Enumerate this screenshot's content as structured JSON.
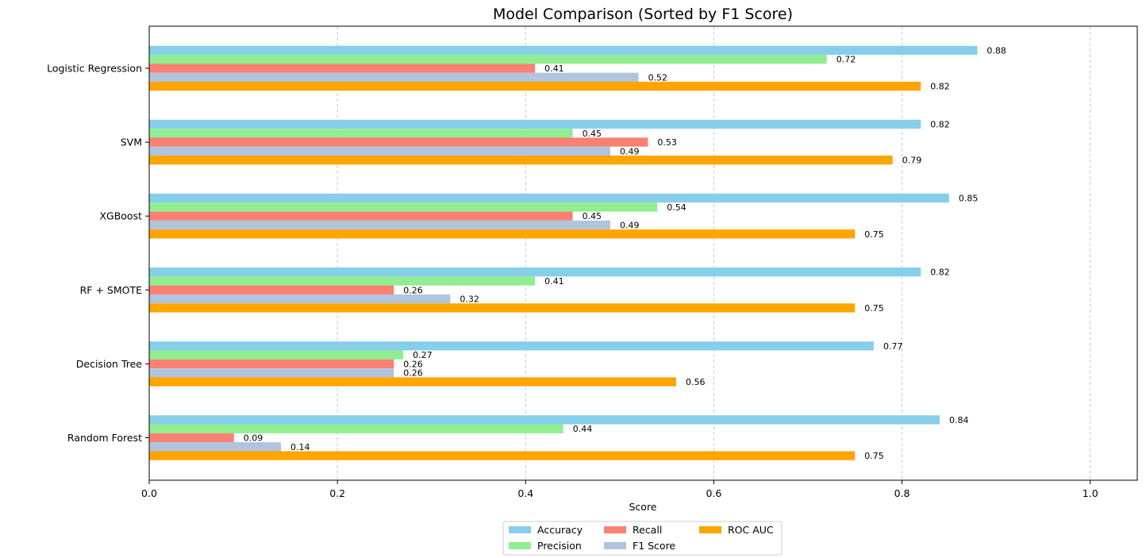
{
  "chart_data": {
    "type": "bar",
    "orientation": "horizontal",
    "title": "Model Comparison (Sorted by F1 Score)",
    "xlabel": "Score",
    "ylabel": "",
    "xlim": [
      0,
      1.05
    ],
    "xticks": [
      0.0,
      0.2,
      0.4,
      0.6,
      0.8,
      1.0
    ],
    "xtick_labels": [
      "0.0",
      "0.2",
      "0.4",
      "0.6",
      "0.8",
      "1.0"
    ],
    "grid": "x-dashed",
    "legend_position": "bottom-center",
    "categories": [
      "Logistic Regression",
      "SVM",
      "XGBoost",
      "RF + SMOTE",
      "Decision Tree",
      "Random Forest"
    ],
    "series": [
      {
        "name": "Accuracy",
        "color": "#87ceeb",
        "values": [
          0.88,
          0.82,
          0.85,
          0.82,
          0.77,
          0.84
        ],
        "labels": [
          "0.88",
          "0.82",
          "0.85",
          "0.82",
          "0.77",
          "0.84"
        ]
      },
      {
        "name": "Precision",
        "color": "#90ee90",
        "values": [
          0.72,
          0.45,
          0.54,
          0.41,
          0.27,
          0.44
        ],
        "labels": [
          "0.72",
          "0.45",
          "0.54",
          "0.41",
          "0.27",
          "0.44"
        ]
      },
      {
        "name": "Recall",
        "color": "#fa8072",
        "values": [
          0.41,
          0.53,
          0.45,
          0.26,
          0.26,
          0.09
        ],
        "labels": [
          "0.41",
          "0.53",
          "0.45",
          "0.26",
          "0.26",
          "0.09"
        ]
      },
      {
        "name": "F1 Score",
        "color": "#b0c4de",
        "values": [
          0.52,
          0.49,
          0.49,
          0.32,
          0.26,
          0.14
        ],
        "labels": [
          "0.52",
          "0.49",
          "0.49",
          "0.32",
          "0.26",
          "0.14"
        ]
      },
      {
        "name": "ROC AUC",
        "color": "#ffa500",
        "values": [
          0.82,
          0.79,
          0.75,
          0.75,
          0.56,
          0.75
        ],
        "labels": [
          "0.82",
          "0.79",
          "0.75",
          "0.75",
          "0.56",
          "0.75"
        ]
      }
    ]
  }
}
